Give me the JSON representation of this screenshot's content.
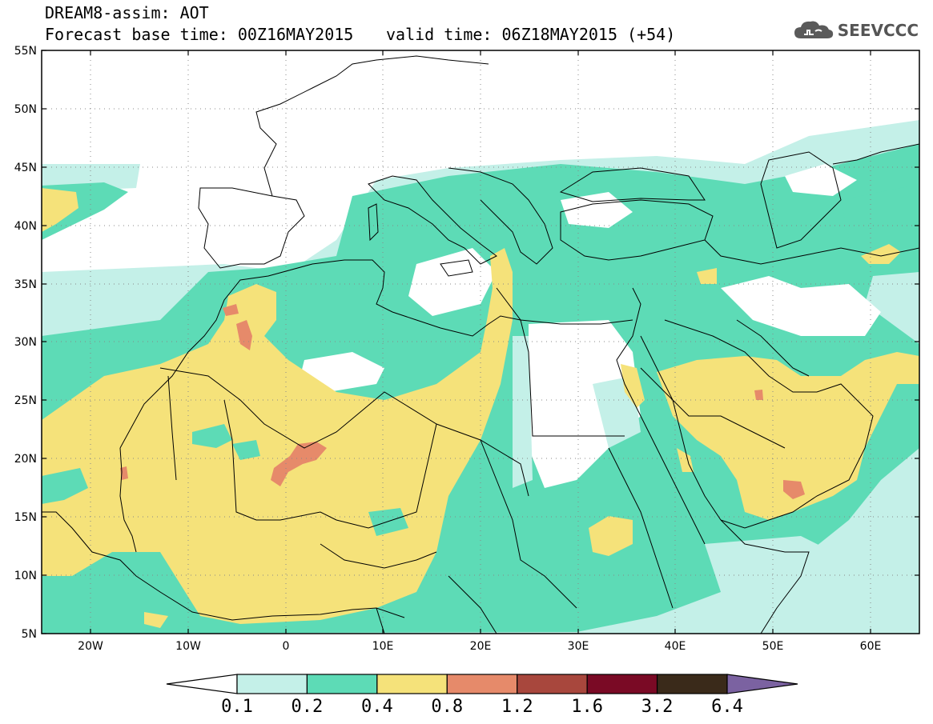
{
  "title": {
    "line1": "DREAM8-assim: AOT",
    "line2": "Forecast base time: 00Z16MAY2015",
    "line3": "valid time: 06Z18MAY2015 (+54)"
  },
  "logo": {
    "text": "SEEVCCC",
    "icon": "cloud-icon"
  },
  "map": {
    "lat_range": [
      5,
      55
    ],
    "lon_range": [
      -25,
      65
    ],
    "lat_labels": [
      "55N",
      "50N",
      "45N",
      "40N",
      "35N",
      "30N",
      "25N",
      "20N",
      "15N",
      "10N",
      "5N"
    ],
    "lon_labels": [
      "20W",
      "10W",
      "0",
      "10E",
      "20E",
      "30E",
      "40E",
      "50E",
      "60E"
    ],
    "grid": true
  },
  "colorbar": {
    "colors": [
      "#ffffff",
      "#c4f0e8",
      "#5ddbb6",
      "#f5e27a",
      "#e68a6a",
      "#a8473d",
      "#7a0a25",
      "#3a2a1a",
      "#7b62a1"
    ],
    "labels": [
      "0.1",
      "0.2",
      "0.4",
      "0.8",
      "1.2",
      "1.6",
      "3.2",
      "6.4"
    ]
  }
}
